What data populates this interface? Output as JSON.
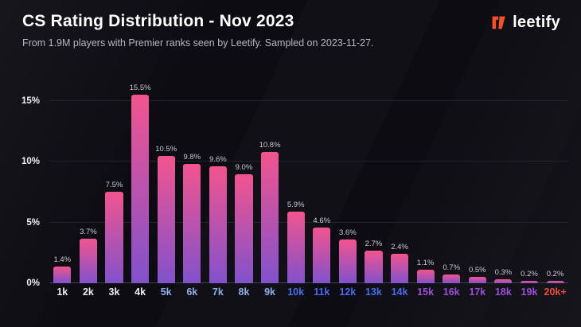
{
  "header": {
    "title": "CS Rating Distribution - Nov 2023",
    "subtitle": "From 1.9M players with Premier ranks seen by Leetify. Sampled on 2023-11-27."
  },
  "brand": {
    "name": "leetify",
    "icon": "leetify-logo-icon",
    "color": "#f4502a"
  },
  "chart_data": {
    "type": "bar",
    "title": "CS Rating Distribution - Nov 2023",
    "subtitle": "From 1.9M players with Premier ranks seen by Leetify. Sampled on 2023-11-27.",
    "categories": [
      "1k",
      "2k",
      "3k",
      "4k",
      "5k",
      "6k",
      "7k",
      "8k",
      "9k",
      "10k",
      "11k",
      "12k",
      "13k",
      "14k",
      "15k",
      "16k",
      "17k",
      "18k",
      "19k",
      "20k+"
    ],
    "values": [
      1.4,
      3.7,
      7.5,
      15.5,
      10.5,
      9.8,
      9.6,
      9.0,
      10.8,
      5.9,
      4.6,
      3.6,
      2.7,
      2.4,
      1.1,
      0.7,
      0.5,
      0.3,
      0.2,
      0.2
    ],
    "value_labels": [
      "1.4%",
      "3.7%",
      "7.5%",
      "15.5%",
      "10.5%",
      "9.8%",
      "9.6%",
      "9.0%",
      "10.8%",
      "5.9%",
      "4.6%",
      "3.6%",
      "2.7%",
      "2.4%",
      "1.1%",
      "0.7%",
      "0.5%",
      "0.3%",
      "0.2%",
      "0.2%"
    ],
    "yticks": [
      "0%",
      "5%",
      "10%",
      "15%"
    ],
    "ytick_values": [
      0,
      5,
      10,
      15
    ],
    "ylim": [
      0,
      16.5
    ],
    "xlabel": "",
    "ylabel": "",
    "grid": "horizontal",
    "legend": "none",
    "bar_gradient": {
      "top": "#f2548e",
      "bottom": "#8152cc"
    },
    "category_colors": [
      "#ececf2",
      "#ececf2",
      "#ececf2",
      "#ececf2",
      "#8fb0ea",
      "#8fb0ea",
      "#8fb0ea",
      "#8fb0ea",
      "#8fb0ea",
      "#4a6cf0",
      "#4a6cf0",
      "#4a6cf0",
      "#4a6cf0",
      "#4a6cf0",
      "#9e4fd9",
      "#9e4fd9",
      "#9e4fd9",
      "#9e4fd9",
      "#9e4fd9",
      "#e8503c"
    ]
  }
}
